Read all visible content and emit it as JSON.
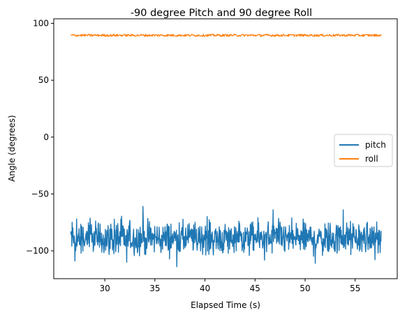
{
  "chart_data": {
    "type": "line",
    "title": "-90 degree Pitch and 90 degree Roll",
    "xlabel": "Elapsed Time (s)",
    "ylabel": "Angle (degrees)",
    "xlim": [
      24.9,
      59.2
    ],
    "ylim": [
      -124.5,
      104.0
    ],
    "x_ticks": [
      30,
      35,
      40,
      45,
      50,
      55
    ],
    "x_tick_labels": [
      "30",
      "35",
      "40",
      "45",
      "50",
      "55"
    ],
    "y_ticks": [
      -100,
      -50,
      0,
      50,
      100
    ],
    "y_tick_labels": [
      "−100",
      "−50",
      "0",
      "50",
      "100"
    ],
    "grid": false,
    "legend_position": "center-right",
    "series": [
      {
        "name": "pitch",
        "color": "#1f77b4",
        "x_range": [
          26.6,
          57.6
        ],
        "mean": -89,
        "noise_range": [
          -114,
          -61
        ],
        "spikes": [
          {
            "x": 27.0,
            "y": -109
          },
          {
            "x": 27.2,
            "y": -72
          },
          {
            "x": 32.2,
            "y": -110
          },
          {
            "x": 33.8,
            "y": -61
          },
          {
            "x": 37.2,
            "y": -114
          },
          {
            "x": 46.8,
            "y": -64
          },
          {
            "x": 53.8,
            "y": -64
          },
          {
            "x": 51.0,
            "y": -111
          }
        ]
      },
      {
        "name": "roll",
        "color": "#ff7f0e",
        "x_range": [
          26.6,
          57.6
        ],
        "mean": 89.5,
        "noise_range": [
          88.5,
          90.5
        ]
      }
    ]
  }
}
